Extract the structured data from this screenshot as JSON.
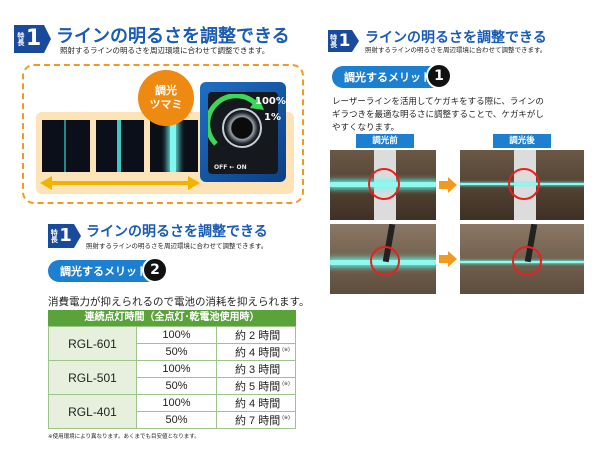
{
  "left_top": {
    "badge_small": "特長",
    "badge_num": "1",
    "title": "ラインの明るさを調整できる",
    "subtitle": "照射するラインの明るさを周辺環境に合わせて調整できます。",
    "knob_label_line1": "調光",
    "knob_label_line2": "ツマミ",
    "percent_high": "100%",
    "percent_low": "1%",
    "switch_label": "OFF ← ON"
  },
  "left_bottom": {
    "badge_small": "特長",
    "badge_num": "1",
    "title": "ラインの明るさを調整できる",
    "subtitle": "照射するラインの明るさを周辺環境に合わせて調整できます。",
    "merit_label": "調光するメリット",
    "merit_num": "2",
    "body": "消費電力が抑えられるので電池の消耗を抑えられます。",
    "table_header": "連続点灯時間（全点灯･乾電池使用時）",
    "rows": [
      {
        "model": "RGL-601",
        "levels": [
          {
            "pct": "100%",
            "time": "約 2 時間"
          },
          {
            "pct": "50%",
            "time": "約 4 時間",
            "note": "(※)"
          }
        ]
      },
      {
        "model": "RGL-501",
        "levels": [
          {
            "pct": "100%",
            "time": "約 3 時間"
          },
          {
            "pct": "50%",
            "time": "約 5 時間",
            "note": "(※)"
          }
        ]
      },
      {
        "model": "RGL-401",
        "levels": [
          {
            "pct": "100%",
            "time": "約 4 時間"
          },
          {
            "pct": "50%",
            "time": "約 7 時間",
            "note": "(※)"
          }
        ]
      }
    ],
    "footnote": "※使用環境により異なります。あくまでも目安値となります。"
  },
  "right": {
    "badge_small": "特長",
    "badge_num": "1",
    "title": "ラインの明るさを調整できる",
    "subtitle": "照射するラインの明るさを周辺環境に合わせて調整できます。",
    "merit_label": "調光するメリット",
    "merit_num": "1",
    "body_line1": "レーザーラインを活用してケガキをする際に、ラインの",
    "body_line2": "ギラつきを最適な明るさに調整することで、ケガキがし",
    "body_line3": "やすくなります。",
    "before_label": "調光前",
    "after_label": "調光後"
  },
  "colors": {
    "brand": "#1a4a9c",
    "accent": "#1c7fd0",
    "orange": "#f29a1f",
    "table_green": "#5aa33a"
  }
}
